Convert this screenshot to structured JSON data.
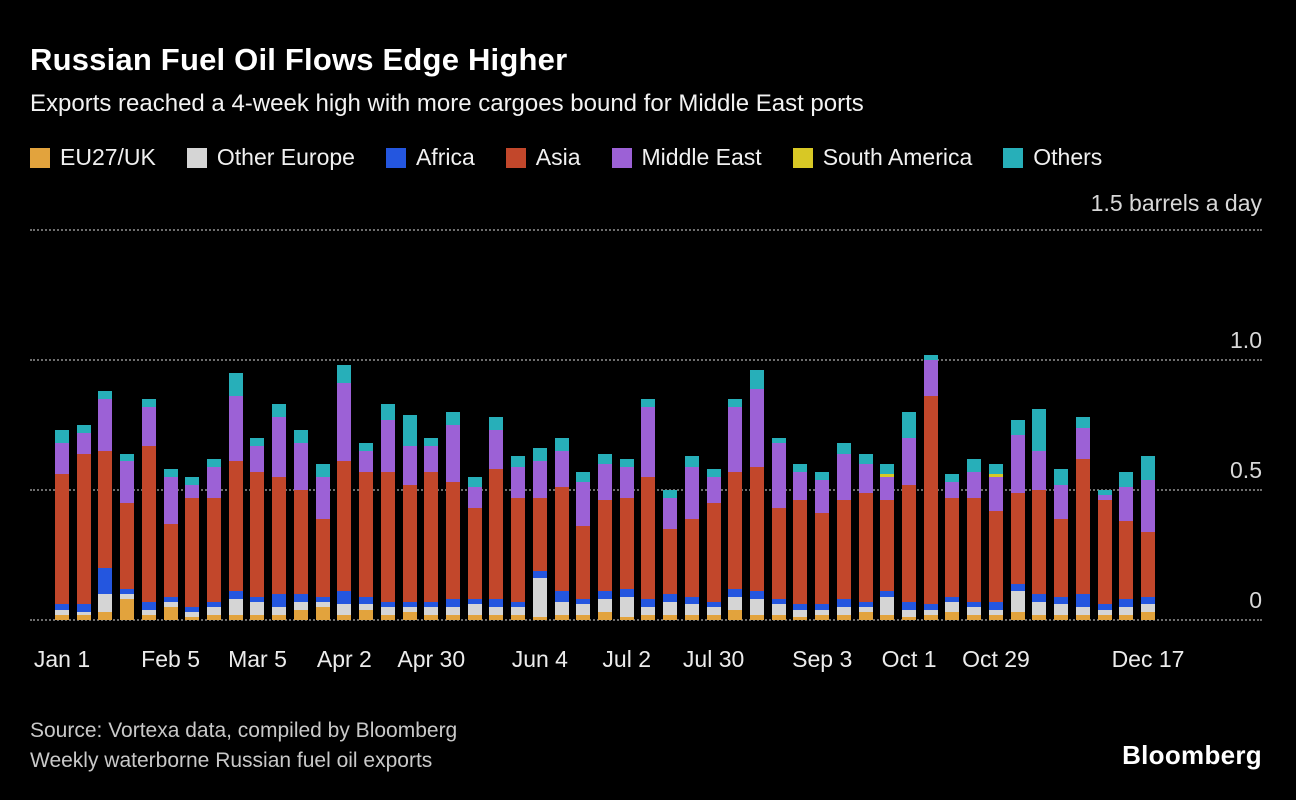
{
  "header": {
    "title": "Russian Fuel Oil Flows Edge Higher",
    "subtitle": "Exports reached a 4-week high with more cargoes bound for Middle East ports"
  },
  "legend": [
    {
      "label": "EU27/UK",
      "color": "#E2A33D"
    },
    {
      "label": "Other Europe",
      "color": "#D5D5D5"
    },
    {
      "label": "Africa",
      "color": "#2456DF"
    },
    {
      "label": "Asia",
      "color": "#C2472B"
    },
    {
      "label": "Middle East",
      "color": "#9C61D6"
    },
    {
      "label": "South America",
      "color": "#D8C825"
    },
    {
      "label": "Others",
      "color": "#27AFB9"
    }
  ],
  "axis": {
    "unit_label": "1.5 barrels a day",
    "y_ticks": [
      {
        "value": 1.5,
        "label": ""
      },
      {
        "value": 1.0,
        "label": "1.0"
      },
      {
        "value": 0.5,
        "label": "0.5"
      },
      {
        "value": 0,
        "label": "0"
      }
    ],
    "x_ticks": [
      {
        "index": 0,
        "label": "Jan 1"
      },
      {
        "index": 5,
        "label": "Feb 5"
      },
      {
        "index": 9,
        "label": "Mar 5"
      },
      {
        "index": 13,
        "label": "Apr 2"
      },
      {
        "index": 17,
        "label": "Apr 30"
      },
      {
        "index": 22,
        "label": "Jun 4"
      },
      {
        "index": 26,
        "label": "Jul 2"
      },
      {
        "index": 30,
        "label": "Jul 30"
      },
      {
        "index": 35,
        "label": "Sep 3"
      },
      {
        "index": 39,
        "label": "Oct 1"
      },
      {
        "index": 43,
        "label": "Oct 29"
      },
      {
        "index": 50,
        "label": "Dec 17"
      }
    ]
  },
  "chart_data": {
    "type": "bar",
    "stacked": true,
    "title": "Russian Fuel Oil Flows Edge Higher",
    "subtitle": "Exports reached a 4-week high with more cargoes bound for Middle East ports",
    "unit": "1.5 barrels a day",
    "ylabel": "barrels a day",
    "ylim": [
      0,
      1.5
    ],
    "y_tick_values": [
      0,
      0.5,
      1.0,
      1.5
    ],
    "legend_position": "top",
    "grid": "dotted-horizontal",
    "categories": [
      "Jan 1",
      "Jan 8",
      "Jan 15",
      "Jan 22",
      "Jan 29",
      "Feb 5",
      "Feb 12",
      "Feb 19",
      "Feb 26",
      "Mar 5",
      "Mar 12",
      "Mar 19",
      "Mar 26",
      "Apr 2",
      "Apr 9",
      "Apr 16",
      "Apr 23",
      "Apr 30",
      "May 7",
      "May 14",
      "May 21",
      "May 28",
      "Jun 4",
      "Jun 11",
      "Jun 18",
      "Jun 25",
      "Jul 2",
      "Jul 9",
      "Jul 16",
      "Jul 23",
      "Jul 30",
      "Aug 6",
      "Aug 13",
      "Aug 20",
      "Aug 27",
      "Sep 3",
      "Sep 10",
      "Sep 17",
      "Sep 24",
      "Oct 1",
      "Oct 8",
      "Oct 15",
      "Oct 22",
      "Oct 29",
      "Nov 5",
      "Nov 12",
      "Nov 19",
      "Nov 26",
      "Dec 3",
      "Dec 10",
      "Dec 17"
    ],
    "series": [
      {
        "name": "EU27/UK",
        "color": "#E2A33D",
        "values": [
          0.02,
          0.02,
          0.03,
          0.08,
          0.02,
          0.05,
          0.01,
          0.02,
          0.02,
          0.02,
          0.02,
          0.04,
          0.05,
          0.02,
          0.04,
          0.02,
          0.03,
          0.02,
          0.02,
          0.02,
          0.02,
          0.02,
          0.01,
          0.02,
          0.02,
          0.03,
          0.01,
          0.02,
          0.02,
          0.02,
          0.02,
          0.04,
          0.02,
          0.02,
          0.01,
          0.02,
          0.02,
          0.03,
          0.02,
          0.01,
          0.02,
          0.03,
          0.02,
          0.02,
          0.03,
          0.02,
          0.02,
          0.02,
          0.02,
          0.02,
          0.03
        ]
      },
      {
        "name": "Other Europe",
        "color": "#D5D5D5",
        "values": [
          0.02,
          0.01,
          0.07,
          0.02,
          0.02,
          0.02,
          0.02,
          0.03,
          0.06,
          0.05,
          0.03,
          0.03,
          0.02,
          0.04,
          0.02,
          0.03,
          0.02,
          0.03,
          0.03,
          0.04,
          0.03,
          0.03,
          0.15,
          0.05,
          0.04,
          0.05,
          0.08,
          0.03,
          0.05,
          0.04,
          0.03,
          0.05,
          0.06,
          0.04,
          0.03,
          0.02,
          0.03,
          0.02,
          0.07,
          0.03,
          0.02,
          0.04,
          0.03,
          0.02,
          0.08,
          0.05,
          0.04,
          0.03,
          0.02,
          0.03,
          0.03
        ]
      },
      {
        "name": "Africa",
        "color": "#2456DF",
        "values": [
          0.02,
          0.03,
          0.1,
          0.02,
          0.03,
          0.02,
          0.02,
          0.02,
          0.03,
          0.02,
          0.05,
          0.03,
          0.02,
          0.05,
          0.03,
          0.02,
          0.02,
          0.02,
          0.03,
          0.02,
          0.03,
          0.02,
          0.03,
          0.04,
          0.02,
          0.03,
          0.03,
          0.03,
          0.03,
          0.03,
          0.02,
          0.03,
          0.03,
          0.02,
          0.02,
          0.02,
          0.03,
          0.02,
          0.02,
          0.03,
          0.02,
          0.02,
          0.02,
          0.03,
          0.03,
          0.03,
          0.03,
          0.05,
          0.02,
          0.03,
          0.03
        ]
      },
      {
        "name": "Asia",
        "color": "#C2472B",
        "values": [
          0.5,
          0.58,
          0.45,
          0.33,
          0.6,
          0.28,
          0.42,
          0.4,
          0.5,
          0.48,
          0.45,
          0.4,
          0.3,
          0.5,
          0.48,
          0.5,
          0.45,
          0.5,
          0.45,
          0.35,
          0.5,
          0.4,
          0.28,
          0.4,
          0.28,
          0.35,
          0.35,
          0.47,
          0.25,
          0.3,
          0.38,
          0.45,
          0.48,
          0.35,
          0.4,
          0.35,
          0.38,
          0.42,
          0.35,
          0.45,
          0.8,
          0.38,
          0.4,
          0.35,
          0.35,
          0.4,
          0.3,
          0.52,
          0.4,
          0.3,
          0.25
        ]
      },
      {
        "name": "Middle East",
        "color": "#9C61D6",
        "values": [
          0.12,
          0.08,
          0.2,
          0.16,
          0.15,
          0.18,
          0.05,
          0.12,
          0.25,
          0.1,
          0.23,
          0.18,
          0.16,
          0.3,
          0.08,
          0.2,
          0.15,
          0.1,
          0.22,
          0.08,
          0.15,
          0.12,
          0.14,
          0.14,
          0.17,
          0.14,
          0.12,
          0.27,
          0.12,
          0.2,
          0.1,
          0.25,
          0.3,
          0.25,
          0.11,
          0.13,
          0.18,
          0.11,
          0.09,
          0.18,
          0.14,
          0.06,
          0.1,
          0.13,
          0.22,
          0.15,
          0.13,
          0.12,
          0.02,
          0.13,
          0.2
        ]
      },
      {
        "name": "South America",
        "color": "#D8C825",
        "values": [
          0,
          0,
          0,
          0,
          0,
          0,
          0,
          0,
          0,
          0,
          0,
          0,
          0,
          0,
          0,
          0,
          0,
          0,
          0,
          0,
          0,
          0,
          0,
          0,
          0,
          0,
          0,
          0,
          0,
          0,
          0,
          0,
          0,
          0,
          0,
          0,
          0,
          0,
          0.01,
          0,
          0,
          0,
          0,
          0.01,
          0,
          0,
          0,
          0,
          0,
          0,
          0
        ]
      },
      {
        "name": "Others",
        "color": "#27AFB9",
        "values": [
          0.05,
          0.03,
          0.03,
          0.03,
          0.03,
          0.03,
          0.03,
          0.03,
          0.09,
          0.03,
          0.05,
          0.05,
          0.05,
          0.07,
          0.03,
          0.06,
          0.12,
          0.03,
          0.05,
          0.04,
          0.05,
          0.04,
          0.05,
          0.05,
          0.04,
          0.04,
          0.03,
          0.03,
          0.03,
          0.04,
          0.03,
          0.03,
          0.07,
          0.02,
          0.03,
          0.03,
          0.04,
          0.04,
          0.04,
          0.1,
          0.02,
          0.03,
          0.05,
          0.04,
          0.06,
          0.16,
          0.06,
          0.04,
          0.02,
          0.06,
          0.09
        ]
      }
    ]
  },
  "footer": {
    "source_line1": "Source: Vortexa data, compiled by Bloomberg",
    "source_line2": "Weekly waterborne Russian fuel oil exports",
    "brand": "Bloomberg"
  }
}
